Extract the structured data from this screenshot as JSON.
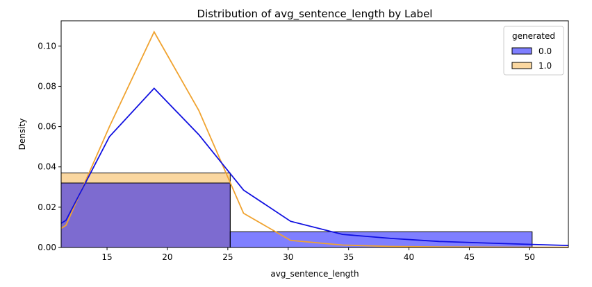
{
  "chart_data": {
    "type": "histogram",
    "title": "Distribution of avg_sentence_length by Label",
    "xlabel": "avg_sentence_length",
    "ylabel": "Density",
    "xlim": [
      11.2,
      53.2
    ],
    "ylim": [
      0,
      0.1125
    ],
    "xticks": [
      15,
      20,
      25,
      30,
      35,
      40,
      45,
      50
    ],
    "yticks": [
      0.0,
      0.02,
      0.04,
      0.06,
      0.08,
      0.1
    ],
    "ytick_labels": [
      "0.00",
      "0.02",
      "0.04",
      "0.06",
      "0.08",
      "0.10"
    ],
    "grid": false,
    "legend": {
      "title": "generated",
      "placement": "top-right"
    },
    "series": [
      {
        "name": "1.0",
        "color": "#f5b041",
        "line_color": "#f0a330",
        "bins": [
          {
            "x0": 11.2,
            "x1": 25.2,
            "density": 0.037
          },
          {
            "x0": 25.2,
            "x1": 50.2,
            "density": 0.0
          }
        ],
        "kde": {
          "x": [
            11.2,
            11.6,
            15.2,
            18.9,
            22.6,
            26.3,
            30.2,
            34.5,
            38.5,
            42.5,
            46.5,
            50.2,
            53.2
          ],
          "y": [
            0.0095,
            0.011,
            0.06,
            0.107,
            0.068,
            0.017,
            0.0035,
            0.0012,
            0.0005,
            0.0003,
            0.0002,
            0.0001,
            0.0001
          ]
        }
      },
      {
        "name": "0.0",
        "color": "#0000ff",
        "line_color": "#1010e0",
        "bins": [
          {
            "x0": 11.2,
            "x1": 25.2,
            "density": 0.032
          },
          {
            "x0": 25.2,
            "x1": 50.2,
            "density": 0.0078
          }
        ],
        "kde": {
          "x": [
            11.2,
            11.6,
            15.2,
            18.9,
            22.6,
            26.3,
            30.2,
            34.5,
            38.5,
            42.5,
            46.5,
            50.2,
            53.2
          ],
          "y": [
            0.012,
            0.0135,
            0.055,
            0.079,
            0.056,
            0.0285,
            0.013,
            0.0065,
            0.0045,
            0.003,
            0.0022,
            0.0015,
            0.001
          ]
        }
      }
    ]
  }
}
